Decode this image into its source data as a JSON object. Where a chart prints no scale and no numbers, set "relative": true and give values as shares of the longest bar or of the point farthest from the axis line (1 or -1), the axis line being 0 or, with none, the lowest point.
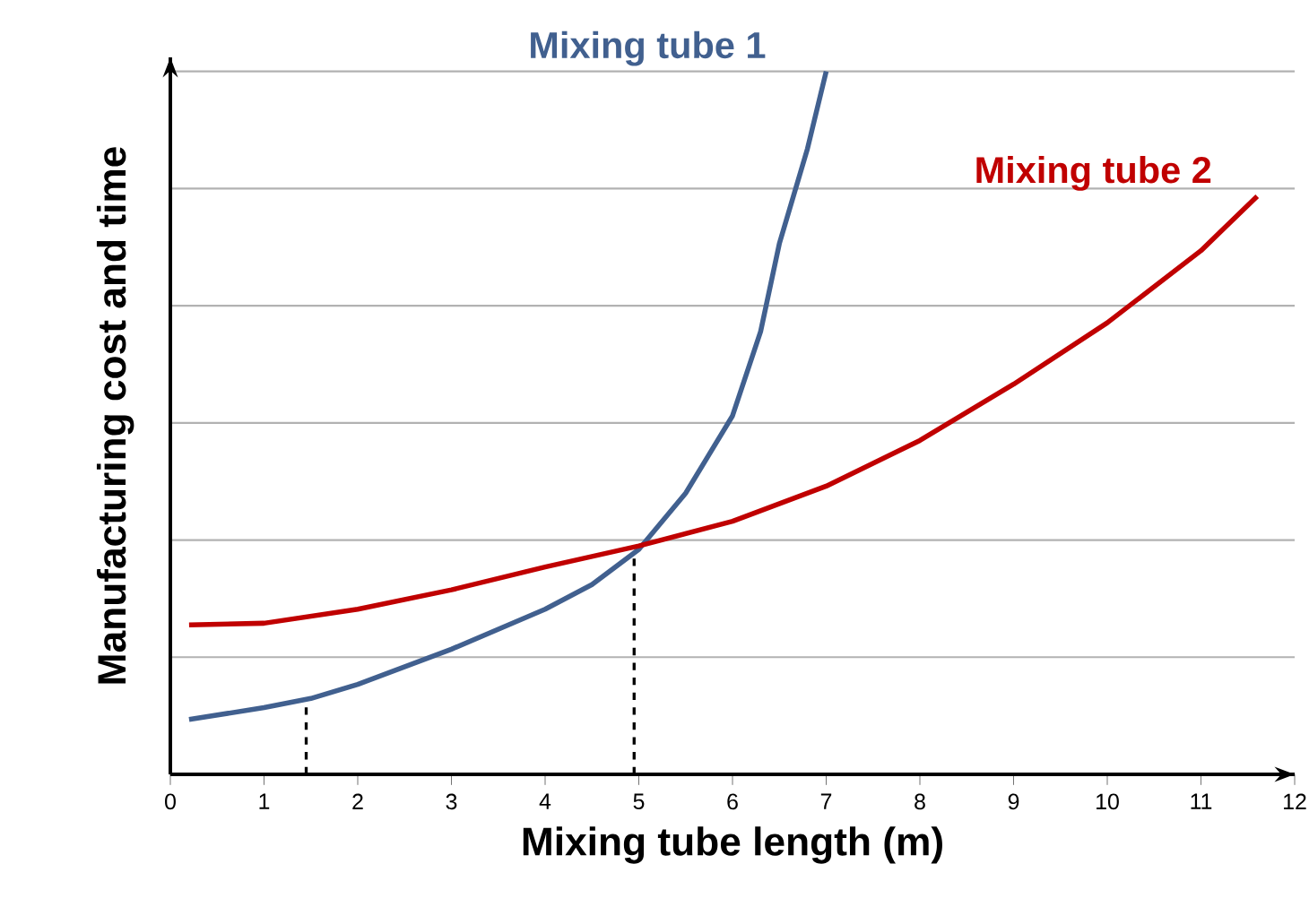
{
  "chart_data": {
    "type": "line",
    "relative": true,
    "xlabel": "Mixing tube length (m)",
    "ylabel": "Manufacturing cost and time",
    "xlim": [
      0,
      12
    ],
    "xticks": [
      0,
      1,
      2,
      3,
      4,
      5,
      6,
      7,
      8,
      9,
      10,
      11,
      12
    ],
    "grid": "y",
    "marker": "none",
    "line_style": "solid",
    "series": [
      {
        "name": "Mixing tube 1",
        "color": "#41608f",
        "x": [
          0.2,
          1,
          1.5,
          2,
          3,
          4,
          4.5,
          5,
          5.5,
          6,
          6.3,
          6.5,
          6.8,
          7
        ],
        "values": [
          0.078,
          0.095,
          0.108,
          0.128,
          0.178,
          0.235,
          0.27,
          0.32,
          0.4,
          0.51,
          0.63,
          0.755,
          0.89,
          1.0
        ]
      },
      {
        "name": "Mixing tube 2",
        "color": "#c00000",
        "x": [
          0.2,
          1,
          2,
          3,
          4,
          5,
          6,
          7,
          8,
          9,
          10,
          11,
          11.6
        ],
        "values": [
          0.2125,
          0.215,
          0.235,
          0.2625,
          0.295,
          0.325,
          0.36,
          0.41,
          0.475,
          0.555,
          0.6425,
          0.745,
          0.8225
        ]
      }
    ],
    "ref_lines": [
      {
        "axis": "x",
        "value": 1.45,
        "line_style": "dashed",
        "color": "#000000"
      },
      {
        "axis": "x",
        "value": 4.95,
        "line_style": "dashed",
        "color": "#000000"
      }
    ]
  }
}
